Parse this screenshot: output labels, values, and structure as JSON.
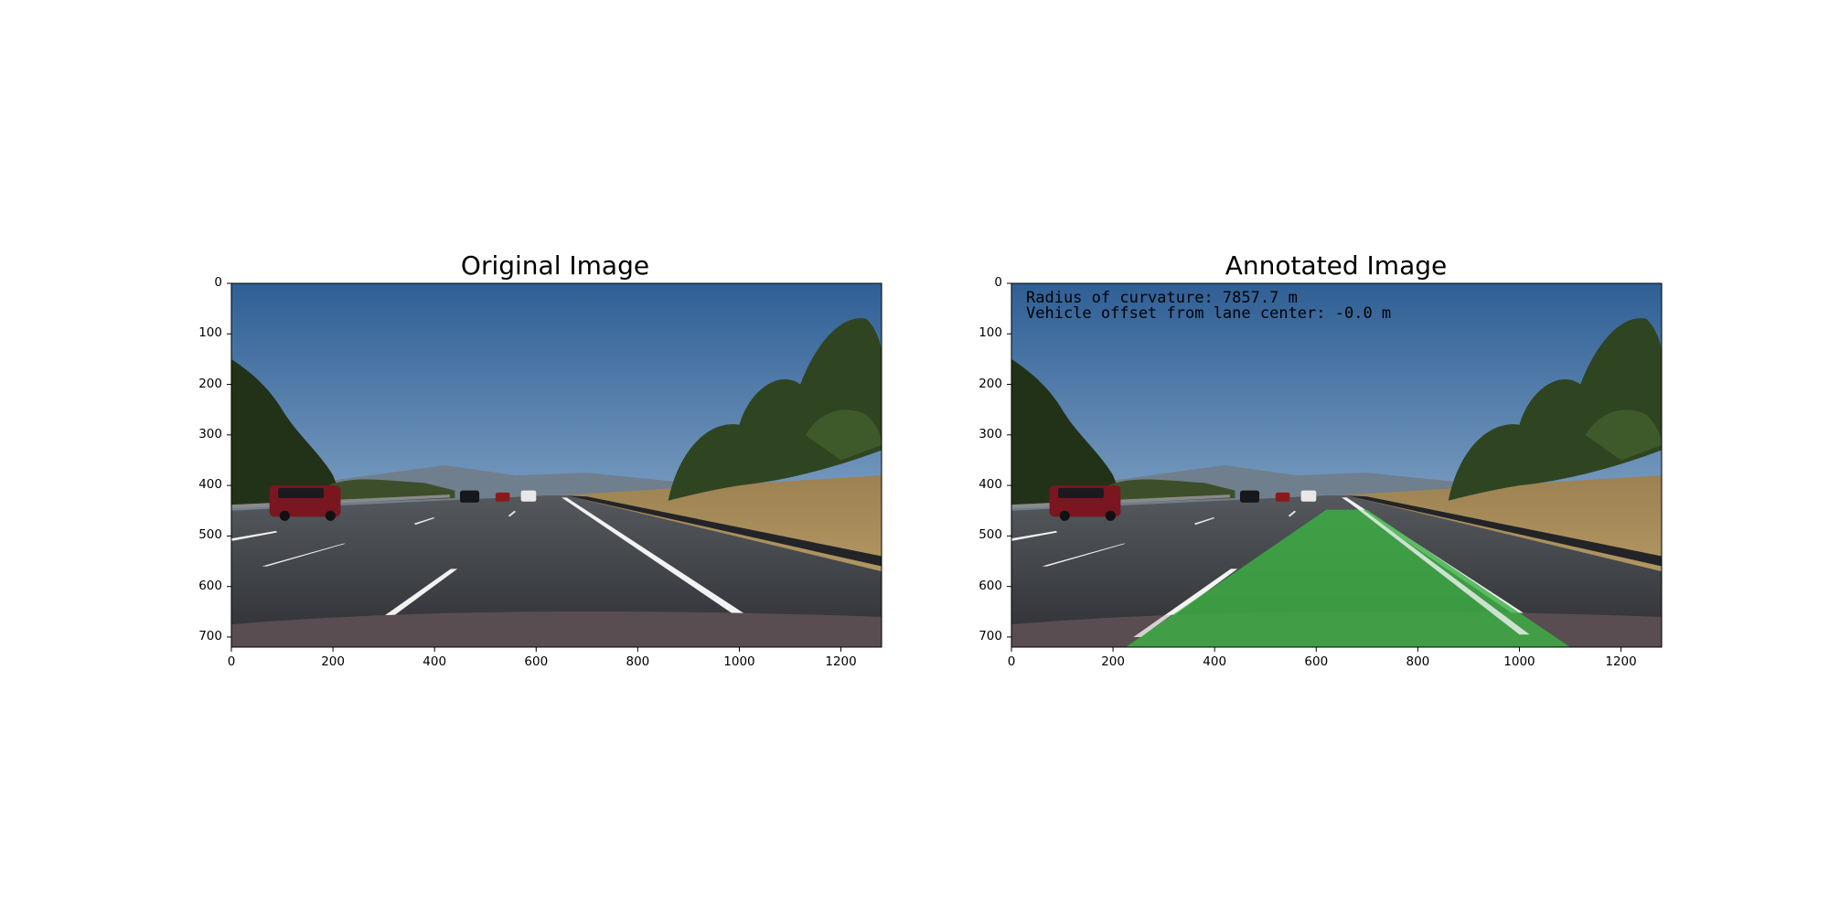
{
  "panels": [
    {
      "title": "Original Image",
      "xticks": [
        "0",
        "200",
        "400",
        "600",
        "800",
        "1000",
        "1200"
      ],
      "yticks": [
        "0",
        "100",
        "200",
        "300",
        "400",
        "500",
        "600",
        "700"
      ]
    },
    {
      "title": "Annotated Image",
      "xticks": [
        "0",
        "200",
        "400",
        "600",
        "800",
        "1000",
        "1200"
      ],
      "yticks": [
        "0",
        "100",
        "200",
        "300",
        "400",
        "500",
        "600",
        "700"
      ],
      "overlay": {
        "radius_text": "Radius of curvature: 7857.7 m",
        "offset_text": "Vehicle offset from lane center: -0.0 m",
        "lane_fill_color": "#3cb043"
      }
    }
  ],
  "colors": {
    "sky_top": "#2f5f95",
    "sky_bottom": "#a9c3dc",
    "road": "#3a3d42",
    "grass": "#b3965e",
    "trees": "#2d3d1f",
    "lane_marking": "#f2f2f2",
    "car": "#7a1620"
  }
}
